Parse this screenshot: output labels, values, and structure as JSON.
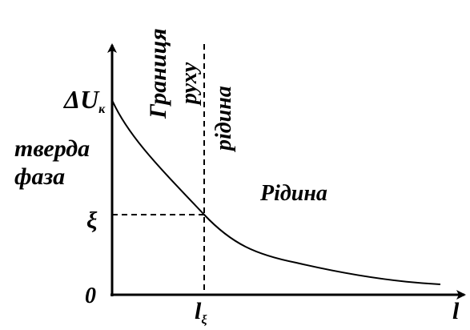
{
  "axes": {
    "y_label": "ΔU",
    "y_label_subscript": "к",
    "origin": "0",
    "y_marker": "ξ",
    "x_marker": "l",
    "x_marker_subscript": "ξ",
    "x_label": "l"
  },
  "labels": {
    "solid_phase": [
      "тверда",
      "фаза"
    ],
    "boundary": [
      "Границя",
      "руху",
      "рідина"
    ],
    "liquid": "Рідина"
  }
}
